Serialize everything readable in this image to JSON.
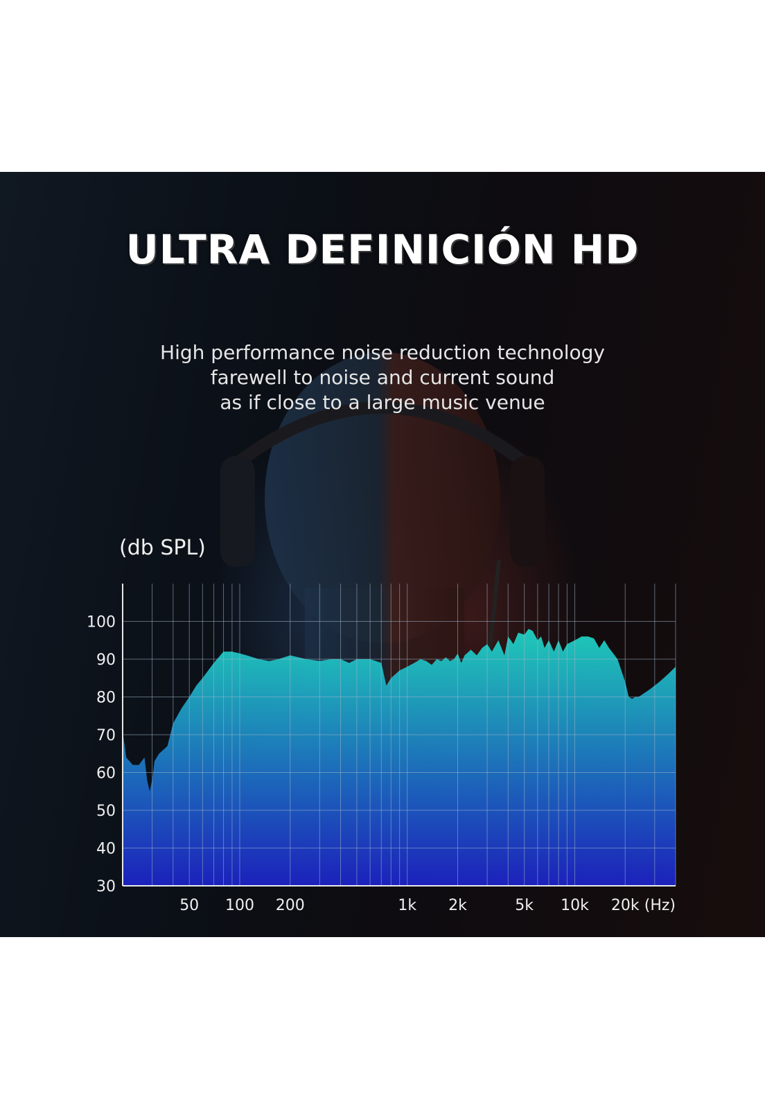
{
  "header": {
    "title": "ULTRA DEFINICIÓN HD",
    "subtitle_lines": [
      "High performance noise reduction technology",
      "farewell to noise and current sound",
      "as if close to a large music venue"
    ]
  },
  "colors": {
    "fill_top": "#1fd3c0",
    "fill_bottom": "#1c22c4",
    "grid": "#9fb4c8"
  },
  "chart_data": {
    "type": "area",
    "title": "",
    "xlabel": "(Hz)",
    "ylabel": "(db SPL)",
    "x_scale": "log",
    "xlim": [
      20,
      40000
    ],
    "ylim": [
      30,
      110
    ],
    "x_ticks": [
      {
        "value": 50,
        "label": "50"
      },
      {
        "value": 100,
        "label": "100"
      },
      {
        "value": 200,
        "label": "200"
      },
      {
        "value": 1000,
        "label": "1k"
      },
      {
        "value": 2000,
        "label": "2k"
      },
      {
        "value": 5000,
        "label": "5k"
      },
      {
        "value": 10000,
        "label": "10k"
      },
      {
        "value": 20000,
        "label": "20k"
      }
    ],
    "y_ticks": [
      30,
      40,
      50,
      60,
      70,
      80,
      90,
      100
    ],
    "grid": true,
    "series": [
      {
        "x": [
          20,
          21,
          23,
          25,
          27,
          28,
          29,
          30,
          31,
          33,
          35,
          37,
          40,
          45,
          50,
          55,
          60,
          70,
          80,
          90,
          100,
          110,
          130,
          150,
          170,
          200,
          250,
          300,
          350,
          400,
          450,
          500,
          550,
          600,
          650,
          700,
          750,
          800,
          900,
          1000,
          1100,
          1200,
          1300,
          1400,
          1500,
          1600,
          1700,
          1800,
          1900,
          2000,
          2100,
          2200,
          2400,
          2600,
          2800,
          3000,
          3200,
          3500,
          3800,
          4000,
          4300,
          4600,
          5000,
          5300,
          5600,
          6000,
          6300,
          6600,
          7000,
          7500,
          8000,
          8500,
          9000,
          10000,
          11000,
          12000,
          13000,
          14000,
          15000,
          16000,
          18000,
          20000,
          21000,
          22000,
          23000,
          24000,
          25000,
          28000,
          32000,
          36000,
          40000
        ],
        "y": [
          71,
          64,
          62,
          62,
          64,
          58,
          55,
          58,
          63,
          65,
          66,
          67,
          73,
          77,
          80,
          83,
          85,
          89,
          92,
          92,
          91.5,
          91,
          90,
          89.5,
          90,
          91,
          90,
          89.5,
          90,
          90,
          89,
          90,
          90,
          90,
          89.5,
          89,
          83,
          85,
          87,
          88,
          89,
          90,
          89.5,
          88.5,
          90,
          89.5,
          90.5,
          89.5,
          90,
          91.5,
          89,
          91,
          92.5,
          91,
          93,
          94,
          92,
          95,
          91,
          96,
          94,
          97,
          96.5,
          98,
          97.5,
          95,
          96,
          93,
          95,
          92,
          95,
          92,
          94,
          95,
          96,
          96,
          95.5,
          93,
          95,
          93,
          90,
          84,
          80,
          79.5,
          80,
          80,
          80.5,
          82,
          84,
          86,
          88
        ]
      }
    ]
  }
}
